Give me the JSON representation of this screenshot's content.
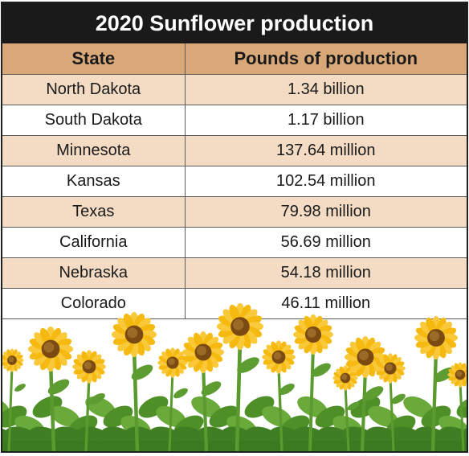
{
  "chart_data": {
    "type": "table",
    "title": "2020 Sunflower production",
    "columns": [
      "State",
      "Pounds of production"
    ],
    "rows": [
      [
        "North Dakota",
        "1.34 billion"
      ],
      [
        "South Dakota",
        "1.17 billion"
      ],
      [
        "Minnesota",
        "137.64 million"
      ],
      [
        "Kansas",
        "102.54 million"
      ],
      [
        "Texas",
        "79.98 million"
      ],
      [
        "California",
        "56.69 million"
      ],
      [
        "Nebraska",
        "54.18 million"
      ],
      [
        "Colorado",
        "46.11 million"
      ]
    ]
  },
  "colors": {
    "title_background": "#1a1a1a",
    "header_background": "#d9a878",
    "shaded_row": "#f4dcc4",
    "petal": "#f6b90f",
    "flower_center": "#7a4a12",
    "leaf": "#5a9a2e"
  },
  "illustration": "sunflower-field"
}
